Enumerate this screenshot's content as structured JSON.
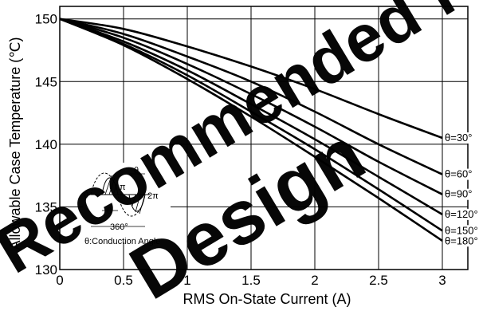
{
  "chart_data": {
    "type": "line",
    "xlabel": "RMS On-State Current (A)",
    "ylabel": "Allowable Case Temperature (℃)",
    "xlim": [
      0,
      3.2
    ],
    "ylim": [
      130,
      151
    ],
    "grid": true,
    "x_ticks": [
      "0",
      "0.5",
      "1",
      "1.5",
      "2",
      "2.5",
      "3"
    ],
    "y_ticks": [
      "130",
      "135",
      "140",
      "145",
      "150"
    ],
    "series": [
      {
        "name": "θ=30°",
        "x": [
          0,
          0.5,
          1,
          1.5,
          2,
          2.5,
          3
        ],
        "y": [
          150,
          149.2,
          147.8,
          146.2,
          144.4,
          142.4,
          140.5
        ]
      },
      {
        "name": "θ=60°",
        "x": [
          0,
          0.5,
          1,
          1.5,
          2,
          2.5,
          3
        ],
        "y": [
          150,
          148.8,
          147.0,
          145.0,
          142.6,
          140.0,
          137.6
        ]
      },
      {
        "name": "θ=90°",
        "x": [
          0,
          0.5,
          1,
          1.5,
          2,
          2.5,
          3
        ],
        "y": [
          150,
          148.5,
          146.4,
          144.0,
          141.4,
          138.6,
          136.0
        ]
      },
      {
        "name": "θ=120°",
        "x": [
          0,
          0.5,
          1,
          1.5,
          2,
          2.5,
          3
        ],
        "y": [
          150,
          148.2,
          145.9,
          143.2,
          140.4,
          137.4,
          134.4
        ]
      },
      {
        "name": "θ=150°",
        "x": [
          0,
          0.5,
          1,
          1.5,
          2,
          2.5,
          3
        ],
        "y": [
          150,
          148.0,
          145.5,
          142.6,
          139.6,
          136.4,
          133.1
        ]
      },
      {
        "name": "θ=180°",
        "x": [
          0,
          0.5,
          1,
          1.5,
          2,
          2.5,
          3
        ],
        "y": [
          150,
          147.9,
          145.2,
          142.2,
          139.0,
          135.7,
          132.3
        ]
      }
    ],
    "inset": {
      "label_zero": "0",
      "label_pi": "π",
      "label_2pi": "2π",
      "label_theta_top": "θ",
      "label_theta_bottom": "θ",
      "label_360": "360°",
      "caption": "θ:Conduction Angle"
    },
    "watermark_lines": [
      "Recommended for new",
      "Design"
    ]
  }
}
